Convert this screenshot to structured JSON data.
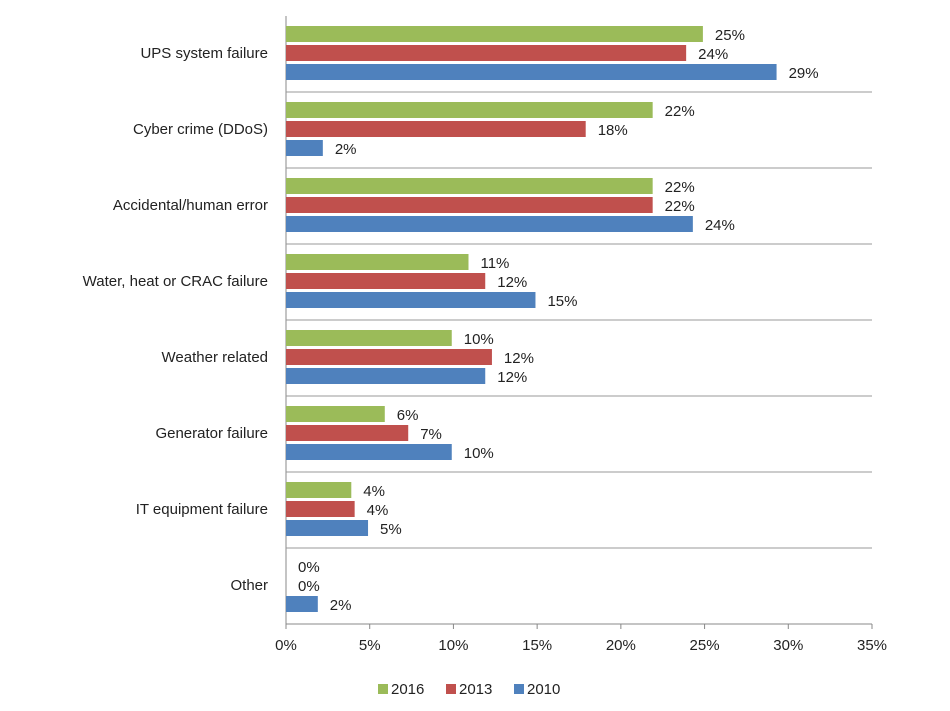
{
  "chart_data": {
    "type": "bar",
    "orientation": "horizontal",
    "categories": [
      "UPS system failure",
      "Cyber crime (DDoS)",
      "Accidental/human error",
      "Water, heat or CRAC failure",
      "Weather related",
      "Generator failure",
      "IT equipment failure",
      "Other"
    ],
    "series": [
      {
        "name": "2016",
        "color": "#9bbb59",
        "values": [
          24.9,
          21.9,
          21.9,
          10.9,
          9.9,
          5.9,
          3.9,
          0
        ],
        "value_labels": [
          "25%",
          "22%",
          "22%",
          "11%",
          "10%",
          "6%",
          "4%",
          "0%"
        ]
      },
      {
        "name": "2013",
        "color": "#c0504d",
        "values": [
          23.9,
          17.9,
          21.9,
          11.9,
          12.3,
          7.3,
          4.1,
          0
        ],
        "value_labels": [
          "24%",
          "18%",
          "22%",
          "12%",
          "12%",
          "7%",
          "4%",
          "0%"
        ]
      },
      {
        "name": "2010",
        "color": "#4f81bd",
        "values": [
          29.3,
          2.2,
          24.3,
          14.9,
          11.9,
          9.9,
          4.9,
          1.9
        ],
        "value_labels": [
          "29%",
          "2%",
          "24%",
          "15%",
          "12%",
          "10%",
          "5%",
          "2%"
        ]
      }
    ],
    "xlim": [
      0,
      35
    ],
    "xticks": [
      {
        "value": 0,
        "label": "0%"
      },
      {
        "value": 5,
        "label": "5%"
      },
      {
        "value": 10,
        "label": "10%"
      },
      {
        "value": 15,
        "label": "15%"
      },
      {
        "value": 20,
        "label": "20%"
      },
      {
        "value": 25,
        "label": "25%"
      },
      {
        "value": 30,
        "label": "30%"
      },
      {
        "value": 35,
        "label": "35%"
      }
    ],
    "legend": "bottom"
  }
}
